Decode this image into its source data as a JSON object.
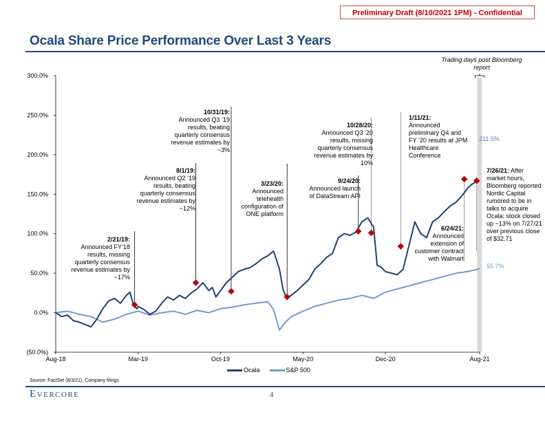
{
  "header": {
    "draft_label": "Preliminary Draft (8/10/2021 1PM) - Confidential",
    "title": "Ocala Share Price Performance Over Last 3 Years"
  },
  "trading_note": "Trading days post Bloomberg report",
  "footer": {
    "source": "Source: FactSet (8/3/21), Company filings",
    "logo": "Evercore",
    "page_number": "4"
  },
  "legend": [
    {
      "name": "Ocala",
      "color": "#1f3f73"
    },
    {
      "name": "S&P 500",
      "color": "#6f9bd1"
    }
  ],
  "end_labels": {
    "ocala": "211.5%",
    "sp500": "55.7%"
  },
  "annotations": [
    {
      "date": "2/21/19:",
      "text": "Announced FY’18 results, missing quarterly consensus revenue estimates by ~17%"
    },
    {
      "date": "8/1/19:",
      "text": "Announced Q2 ’19 results, beating quarterly consensus revenue estimates by ~12%"
    },
    {
      "date": "10/31/19:",
      "text": "Announced Q3 ’19 results, beating quarterly consensus revenue estimates by ~3%"
    },
    {
      "date": "3/23/20:",
      "text": "Announced telehealth configuration of ONE platform"
    },
    {
      "date": "9/24/20:",
      "text": "Announced launch of DataStream API"
    },
    {
      "date": "10/28/20:",
      "text": "Announced Q3 ’20 results, missing quarterly consensus revenue estimates by 10%"
    },
    {
      "date": "1/11/21:",
      "text": "Announced preliminary Q4 and FY ’20 results at JPM Healthcare Conference"
    },
    {
      "date": "6/24/21:",
      "text": "Announced extension of customer contract with Walmart"
    },
    {
      "date": "7/26/21:",
      "text": "After market hours, Bloomberg reported Nordic Capital rumored to be in talks to acquire Ocala; stock closed up ~13% on 7/27/21 over previous close of $32.71"
    }
  ],
  "chart_data": {
    "type": "line",
    "title": "Ocala Share Price Performance Over Last 3 Years",
    "xlabel": "",
    "ylabel": "",
    "ylim": [
      -50,
      300
    ],
    "y_ticks": [
      "(50.0%)",
      "0.0%",
      "50.0%",
      "100.0%",
      "150.0%",
      "200.0%",
      "250.0%",
      "300.0%"
    ],
    "y_tick_values": [
      -50,
      0,
      50,
      100,
      150,
      200,
      250,
      300
    ],
    "x_ticks": [
      "Aug-18",
      "Mar-19",
      "Oct-19",
      "May-20",
      "Dec-20",
      "Aug-21"
    ],
    "x_tick_months": [
      0,
      7,
      14,
      21,
      28,
      36
    ],
    "xlim_months": [
      0,
      36
    ],
    "grid": false,
    "legend_position": "bottom",
    "series": [
      {
        "name": "Ocala",
        "months": [
          0,
          0.5,
          1,
          1.5,
          2,
          2.5,
          3,
          3.5,
          4,
          4.5,
          5,
          5.5,
          6,
          6.3,
          6.6,
          6.9,
          7,
          7.5,
          8,
          8.5,
          9,
          9.5,
          10,
          10.5,
          11,
          11.5,
          12,
          12.5,
          13,
          13.3,
          13.6,
          14,
          14.5,
          15,
          15.5,
          16,
          16.5,
          17,
          17.5,
          18,
          18.5,
          19,
          19.3,
          19.6,
          20,
          20.5,
          21,
          21.5,
          22,
          22.5,
          23,
          23.5,
          24,
          24.5,
          25,
          25.5,
          26,
          26.5,
          27,
          27.3,
          27.6,
          28,
          28.5,
          29,
          29.5,
          30,
          30.5,
          31,
          31.5,
          32,
          32.5,
          33,
          33.5,
          34,
          34.5,
          35,
          35.3,
          35.6,
          36
        ],
        "values": [
          0,
          -5,
          -3,
          -10,
          -12,
          -15,
          -18,
          -8,
          5,
          15,
          18,
          12,
          22,
          26,
          10,
          5,
          8,
          4,
          -2,
          2,
          12,
          20,
          16,
          22,
          18,
          25,
          30,
          38,
          28,
          32,
          20,
          28,
          38,
          45,
          52,
          55,
          57,
          62,
          68,
          72,
          78,
          55,
          30,
          18,
          22,
          28,
          35,
          42,
          55,
          62,
          70,
          75,
          95,
          100,
          98,
          102,
          115,
          120,
          108,
          60,
          58,
          52,
          50,
          48,
          55,
          85,
          115,
          100,
          95,
          115,
          120,
          128,
          135,
          140,
          148,
          158,
          162,
          165,
          167,
          211.5
        ],
        "final_value": 211.5
      },
      {
        "name": "S&P 500",
        "months": [
          0,
          1,
          2,
          3,
          4,
          5,
          6,
          7,
          8,
          9,
          10,
          11,
          12,
          13,
          14,
          15,
          16,
          17,
          18,
          18.5,
          19,
          19.5,
          20,
          21,
          22,
          23,
          24,
          25,
          26,
          27,
          28,
          29,
          30,
          31,
          32,
          33,
          34,
          35,
          36
        ],
        "values": [
          0,
          2,
          -2,
          -5,
          -12,
          -8,
          -2,
          2,
          -3,
          0,
          2,
          -2,
          3,
          0,
          5,
          7,
          10,
          12,
          14,
          4,
          -22,
          -12,
          -5,
          2,
          8,
          12,
          16,
          18,
          22,
          18,
          26,
          30,
          34,
          38,
          42,
          46,
          50,
          52,
          55.7
        ],
        "final_value": 55.7
      }
    ],
    "events": [
      {
        "date": "2/21/19",
        "month": 6.7,
        "value": 10
      },
      {
        "date": "8/1/19",
        "month": 11.9,
        "value": 38
      },
      {
        "date": "10/31/19",
        "month": 14.9,
        "value": 27
      },
      {
        "date": "3/23/20",
        "month": 19.65,
        "value": 20
      },
      {
        "date": "9/24/20",
        "month": 25.7,
        "value": 103
      },
      {
        "date": "10/28/20",
        "month": 26.8,
        "value": 101
      },
      {
        "date": "1/11/21",
        "month": 29.3,
        "value": 84
      },
      {
        "date": "6/24/21",
        "month": 34.7,
        "value": 169
      },
      {
        "date": "7/26/21",
        "month": 35.75,
        "value": 167
      }
    ],
    "highlight_band": {
      "label": "Trading days post Bloomberg report",
      "from_month": 35.8,
      "to_month": 36.2
    }
  }
}
